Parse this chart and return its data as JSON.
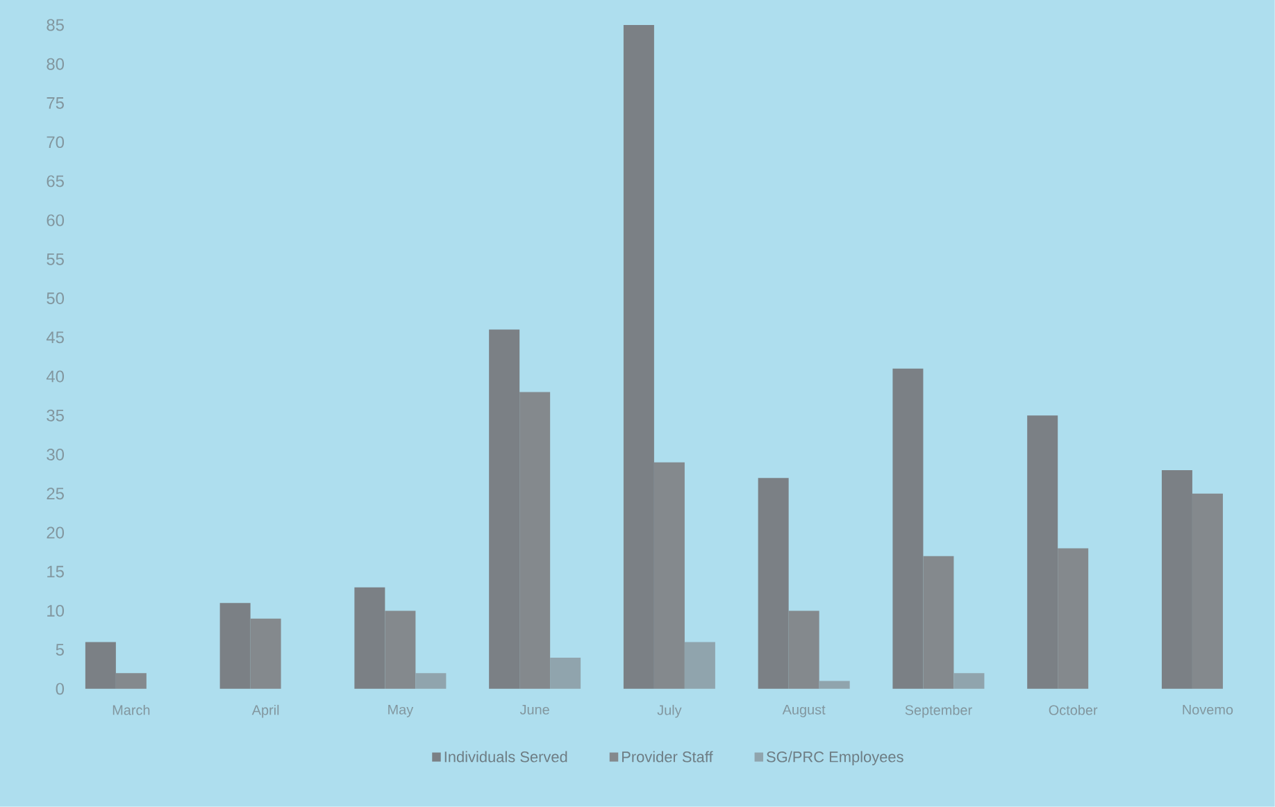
{
  "chart_data": {
    "type": "bar",
    "categories": [
      "March",
      "April",
      "May",
      "June",
      "July",
      "August",
      "September",
      "October",
      "Novemo"
    ],
    "series": [
      {
        "name": "Individuals Served",
        "color": "#7b8085",
        "values": [
          6,
          11,
          13,
          46,
          85,
          27,
          41,
          35,
          28
        ]
      },
      {
        "name": "Provider Staff",
        "color": "#84898d",
        "values": [
          2,
          9,
          10,
          38,
          29,
          10,
          17,
          18,
          25
        ]
      },
      {
        "name": "SG/PRC Employees",
        "color": "#90a4ad",
        "values": [
          0,
          0,
          2,
          4,
          6,
          1,
          2,
          0,
          0
        ]
      }
    ],
    "ylim": [
      0,
      85
    ],
    "yticks": [
      0,
      5,
      10,
      15,
      20,
      25,
      30,
      35,
      40,
      45,
      50,
      55,
      60,
      65,
      70,
      75,
      80,
      85
    ],
    "grid": false,
    "legend": "bottom"
  }
}
